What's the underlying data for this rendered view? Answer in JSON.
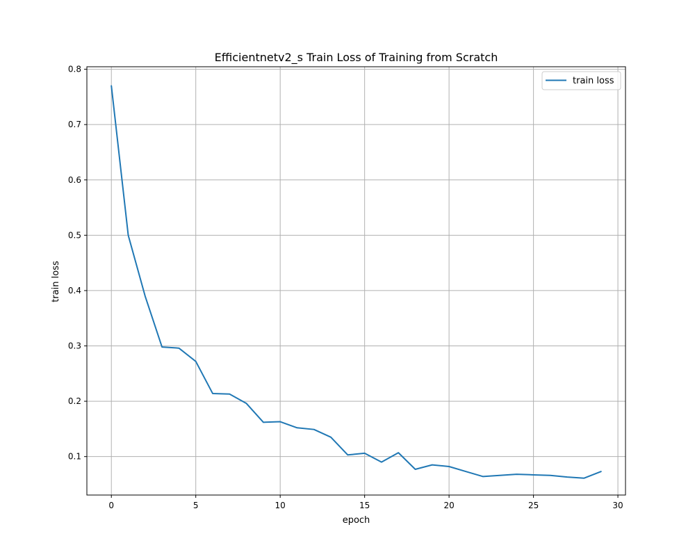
{
  "chart_data": {
    "type": "line",
    "title": "Efficientnetv2_s Train Loss of Training from Scratch",
    "xlabel": "epoch",
    "ylabel": "train loss",
    "xlim": [
      -1.45,
      30.45
    ],
    "ylim": [
      0.0305,
      0.8045
    ],
    "xticks": [
      0,
      5,
      10,
      15,
      20,
      25,
      30
    ],
    "yticks": [
      0.1,
      0.2,
      0.3,
      0.4,
      0.5,
      0.6,
      0.7,
      0.8
    ],
    "xtick_labels": [
      "0",
      "5",
      "10",
      "15",
      "20",
      "25",
      "30"
    ],
    "ytick_labels": [
      "0.1",
      "0.2",
      "0.3",
      "0.4",
      "0.5",
      "0.6",
      "0.7",
      "0.8"
    ],
    "grid": true,
    "legend_position": "top-right",
    "series": [
      {
        "name": "train loss",
        "color": "#1f77b4",
        "x": [
          0,
          1,
          2,
          3,
          4,
          5,
          6,
          7,
          8,
          9,
          10,
          11,
          12,
          13,
          14,
          15,
          16,
          17,
          18,
          19,
          20,
          21,
          22,
          23,
          24,
          25,
          26,
          27,
          28,
          29
        ],
        "y": [
          0.77,
          0.5,
          0.39,
          0.298,
          0.296,
          0.272,
          0.214,
          0.213,
          0.196,
          0.162,
          0.163,
          0.152,
          0.149,
          0.135,
          0.103,
          0.106,
          0.09,
          0.107,
          0.077,
          0.085,
          0.082,
          0.073,
          0.064,
          0.066,
          0.068,
          0.067,
          0.066,
          0.063,
          0.061,
          0.073
        ]
      }
    ]
  }
}
